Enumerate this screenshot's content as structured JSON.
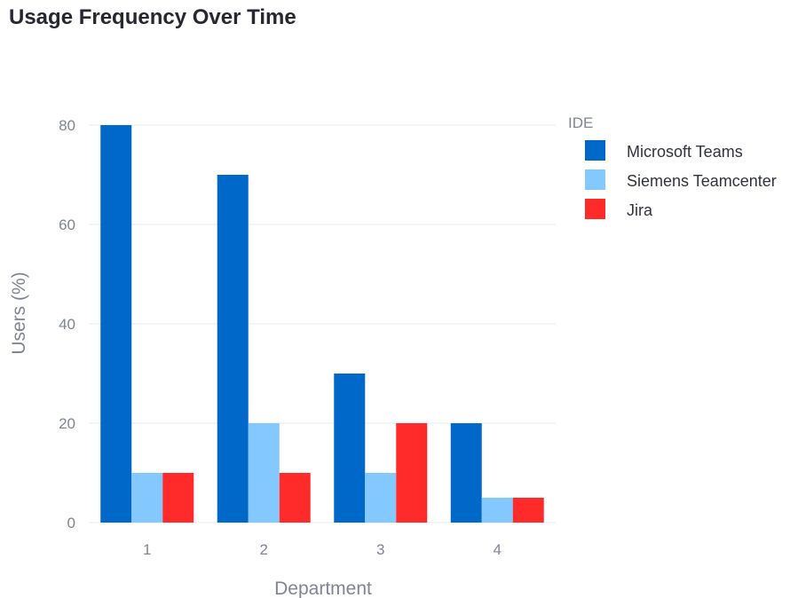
{
  "chart_data": {
    "type": "bar",
    "title": "Usage Frequency Over Time",
    "xlabel": "Department",
    "ylabel": "Users (%)",
    "categories": [
      "1",
      "2",
      "3",
      "4"
    ],
    "ylim": [
      0,
      80
    ],
    "yticks": [
      0,
      20,
      40,
      60,
      80
    ],
    "grid": true,
    "legend_title": "IDE",
    "legend_position": "right",
    "series": [
      {
        "name": "Microsoft Teams",
        "values": [
          80,
          70,
          30,
          20
        ],
        "color": "#0068c9"
      },
      {
        "name": "Siemens Teamcenter",
        "values": [
          10,
          20,
          10,
          5
        ],
        "color": "#83c9ff"
      },
      {
        "name": "Jira",
        "values": [
          10,
          10,
          20,
          5
        ],
        "color": "#ff2b2b"
      }
    ]
  }
}
